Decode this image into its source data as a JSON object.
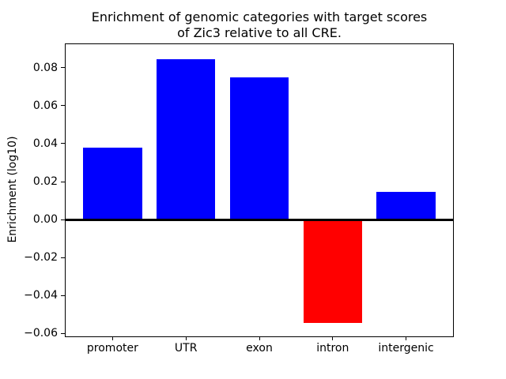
{
  "title": "Enrichment of genomic categories with target scores\nof Zic3 relative to all CRE.",
  "ylabel": "Enrichment (log10)",
  "chart_data": {
    "type": "bar",
    "title": "Enrichment of genomic categories with target scores of Zic3 relative to all CRE.",
    "xlabel": "",
    "ylabel": "Enrichment (log10)",
    "categories": [
      "promoter",
      "UTR",
      "exon",
      "intron",
      "intergenic"
    ],
    "values": [
      0.038,
      0.0845,
      0.075,
      -0.0545,
      0.0145
    ],
    "bar_colors": [
      "#0000ff",
      "#0000ff",
      "#0000ff",
      "#ff0000",
      "#0000ff"
    ],
    "positive_color": "#0000ff",
    "negative_color": "#ff0000",
    "zero_line_color": "#000000",
    "ylim": [
      -0.0615,
      0.0924
    ],
    "xlim": [
      -0.64,
      4.64
    ],
    "bar_width": 0.8,
    "yticks": [
      {
        "value": 0.08,
        "label": "0.08"
      },
      {
        "value": 0.06,
        "label": "0.06"
      },
      {
        "value": 0.04,
        "label": "0.04"
      },
      {
        "value": 0.02,
        "label": "0.02"
      },
      {
        "value": 0.0,
        "label": "0.00"
      },
      {
        "value": -0.02,
        "label": "−0.02"
      },
      {
        "value": -0.04,
        "label": "−0.04"
      },
      {
        "value": -0.06,
        "label": "−0.06"
      }
    ],
    "grid": false,
    "legend": false
  }
}
